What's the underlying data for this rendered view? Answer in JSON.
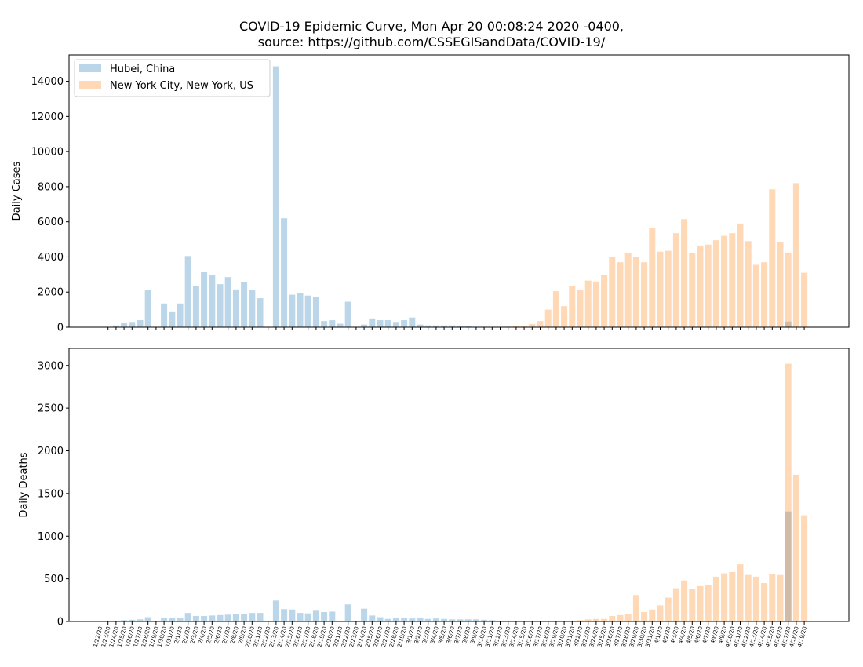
{
  "title": [
    "COVID-19 Epidemic Curve, Mon Apr 20 00:08:24 2020 -0400,",
    "source: https://github.com/CSSEGISandData/COVID-19/"
  ],
  "colors": {
    "hubei": "#1f77b4",
    "nyc": "#ff7f0e",
    "hubei_alpha": 0.3,
    "nyc_alpha": 0.3
  },
  "chart_data": [
    {
      "type": "bar",
      "ylabel": "Daily Cases",
      "xlabel": "",
      "ylim": [
        0,
        15500
      ],
      "yticks": [
        0,
        2000,
        4000,
        6000,
        8000,
        10000,
        12000,
        14000
      ],
      "legend": "upper-left",
      "categories": [
        "1/22/20",
        "1/23/20",
        "1/24/20",
        "1/25/20",
        "1/26/20",
        "1/27/20",
        "1/28/20",
        "1/29/20",
        "1/30/20",
        "1/31/20",
        "2/1/20",
        "2/2/20",
        "2/3/20",
        "2/4/20",
        "2/5/20",
        "2/6/20",
        "2/7/20",
        "2/8/20",
        "2/9/20",
        "2/10/20",
        "2/11/20",
        "2/12/20",
        "2/13/20",
        "2/14/20",
        "2/15/20",
        "2/16/20",
        "2/17/20",
        "2/18/20",
        "2/19/20",
        "2/20/20",
        "2/21/20",
        "2/22/20",
        "2/23/20",
        "2/24/20",
        "2/25/20",
        "2/26/20",
        "2/27/20",
        "2/28/20",
        "2/29/20",
        "3/1/20",
        "3/2/20",
        "3/3/20",
        "3/4/20",
        "3/5/20",
        "3/6/20",
        "3/7/20",
        "3/8/20",
        "3/9/20",
        "3/10/20",
        "3/11/20",
        "3/12/20",
        "3/13/20",
        "3/14/20",
        "3/15/20",
        "3/16/20",
        "3/17/20",
        "3/18/20",
        "3/19/20",
        "3/20/20",
        "3/21/20",
        "3/22/20",
        "3/23/20",
        "3/24/20",
        "3/25/20",
        "3/26/20",
        "3/27/20",
        "3/28/20",
        "3/29/20",
        "3/30/20",
        "3/31/20",
        "4/1/20",
        "4/2/20",
        "4/3/20",
        "4/4/20",
        "4/5/20",
        "4/6/20",
        "4/7/20",
        "4/8/20",
        "4/9/20",
        "4/10/20",
        "4/11/20",
        "4/12/20",
        "4/13/20",
        "4/14/20",
        "4/15/20",
        "4/16/20",
        "4/17/20",
        "4/18/20",
        "4/19/20"
      ],
      "series": [
        {
          "name": "Hubei, China",
          "color": "#1f77b4",
          "values": [
            0,
            0,
            100,
            250,
            300,
            400,
            2100,
            0,
            1350,
            900,
            1350,
            4050,
            2350,
            3150,
            2950,
            2450,
            2850,
            2150,
            2550,
            2100,
            1650,
            0,
            14850,
            6200,
            1850,
            1950,
            1800,
            1700,
            350,
            400,
            200,
            1450,
            0,
            150,
            500,
            400,
            400,
            300,
            400,
            550,
            150,
            100,
            100,
            100,
            100,
            50,
            50,
            25,
            25,
            10,
            5,
            5,
            5,
            5,
            5,
            5,
            5,
            5,
            5,
            0,
            0,
            0,
            0,
            0,
            0,
            0,
            0,
            0,
            0,
            0,
            0,
            0,
            0,
            0,
            0,
            0,
            0,
            0,
            0,
            0,
            0,
            0,
            0,
            0,
            0,
            0,
            325,
            0,
            0
          ]
        },
        {
          "name": "New York City, New York, US",
          "color": "#ff7f0e",
          "values": [
            0,
            0,
            0,
            0,
            0,
            0,
            0,
            0,
            0,
            0,
            0,
            0,
            0,
            0,
            0,
            0,
            0,
            0,
            0,
            0,
            0,
            0,
            0,
            0,
            0,
            0,
            0,
            0,
            0,
            0,
            0,
            0,
            0,
            0,
            0,
            0,
            0,
            0,
            0,
            0,
            0,
            0,
            0,
            0,
            0,
            0,
            0,
            0,
            0,
            0,
            10,
            30,
            50,
            60,
            180,
            350,
            1000,
            2050,
            1200,
            2350,
            2100,
            2650,
            2600,
            2950,
            4000,
            3700,
            4200,
            4000,
            3700,
            5650,
            4300,
            4350,
            5350,
            6150,
            4250,
            4650,
            4700,
            4950,
            5200,
            5350,
            5900,
            4900,
            3550,
            3700,
            7850,
            4850,
            4250,
            8200,
            3100
          ]
        }
      ]
    },
    {
      "type": "bar",
      "ylabel": "Daily Deaths",
      "xlabel": "",
      "ylim": [
        0,
        3200
      ],
      "yticks": [
        0,
        500,
        1000,
        1500,
        2000,
        2500,
        3000
      ],
      "categories": "same as above",
      "series": [
        {
          "name": "Hubei, China",
          "color": "#1f77b4",
          "values": [
            0,
            0,
            10,
            15,
            20,
            25,
            50,
            0,
            40,
            45,
            45,
            100,
            65,
            65,
            70,
            75,
            80,
            85,
            90,
            100,
            100,
            0,
            245,
            145,
            140,
            100,
            95,
            135,
            110,
            115,
            0,
            200,
            0,
            150,
            70,
            50,
            30,
            40,
            45,
            35,
            40,
            30,
            35,
            30,
            25,
            25,
            25,
            25,
            20,
            15,
            10,
            10,
            5,
            5,
            5,
            5,
            5,
            5,
            5,
            0,
            0,
            0,
            0,
            0,
            0,
            0,
            0,
            0,
            0,
            0,
            0,
            0,
            0,
            0,
            0,
            0,
            0,
            0,
            0,
            0,
            0,
            0,
            0,
            0,
            0,
            0,
            1290,
            0,
            0
          ]
        },
        {
          "name": "New York City, New York, US",
          "color": "#ff7f0e",
          "values": [
            0,
            0,
            0,
            0,
            0,
            0,
            0,
            0,
            0,
            0,
            0,
            0,
            0,
            0,
            0,
            0,
            0,
            0,
            0,
            0,
            0,
            0,
            0,
            0,
            0,
            0,
            0,
            0,
            0,
            0,
            0,
            0,
            0,
            0,
            0,
            0,
            0,
            0,
            0,
            0,
            0,
            0,
            0,
            0,
            0,
            0,
            0,
            0,
            0,
            0,
            0,
            0,
            0,
            0,
            0,
            2,
            5,
            5,
            5,
            10,
            15,
            25,
            30,
            30,
            65,
            75,
            85,
            310,
            110,
            140,
            190,
            280,
            390,
            480,
            385,
            415,
            430,
            525,
            565,
            580,
            670,
            545,
            525,
            450,
            555,
            545,
            3020,
            1720,
            1245
          ]
        }
      ]
    }
  ]
}
